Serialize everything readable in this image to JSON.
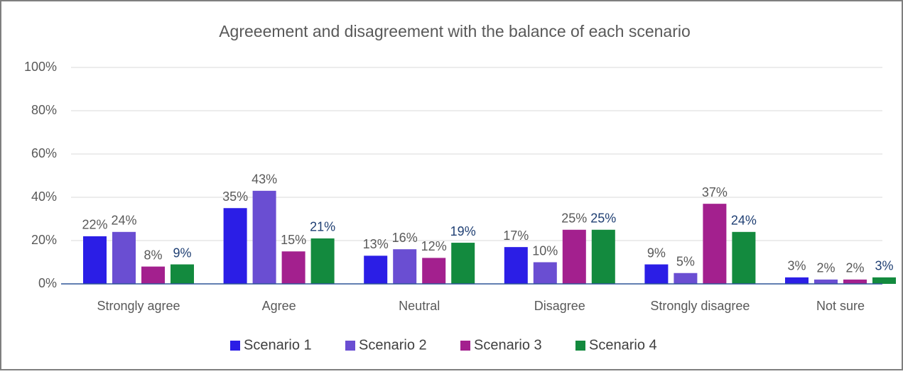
{
  "chart_data": {
    "type": "bar",
    "title": "Agreeement and disagreement with the balance of each scenario",
    "categories": [
      "Strongly agree",
      "Agree",
      "Neutral",
      "Disagree",
      "Strongly disagree",
      "Not sure"
    ],
    "series": [
      {
        "name": "Scenario 1",
        "color": "#2b1ee6",
        "label_color": "#595959",
        "values": [
          22,
          35,
          13,
          17,
          9,
          3
        ],
        "value_labels": [
          "22%",
          "35%",
          "13%",
          "17%",
          "9%",
          "3%"
        ]
      },
      {
        "name": "Scenario 2",
        "color": "#6a4ed2",
        "label_color": "#595959",
        "values": [
          24,
          43,
          16,
          10,
          5,
          2
        ],
        "value_labels": [
          "24%",
          "43%",
          "16%",
          "10%",
          "5%",
          "2%"
        ]
      },
      {
        "name": "Scenario 3",
        "color": "#a3208e",
        "label_color": "#595959",
        "values": [
          8,
          15,
          12,
          25,
          37,
          2
        ],
        "value_labels": [
          "8%",
          "15%",
          "12%",
          "25%",
          "37%",
          "2%"
        ]
      },
      {
        "name": "Scenario 4",
        "color": "#138a3e",
        "label_color": "#1f3f73",
        "values": [
          9,
          21,
          19,
          25,
          24,
          3
        ],
        "value_labels": [
          "9%",
          "21%",
          "19%",
          "25%",
          "24%",
          "3%"
        ]
      }
    ],
    "ylim": [
      0,
      100
    ],
    "yticks": [
      {
        "value": 0,
        "label": "0%"
      },
      {
        "value": 20,
        "label": "20%"
      },
      {
        "value": 40,
        "label": "40%"
      },
      {
        "value": 60,
        "label": "60%"
      },
      {
        "value": 80,
        "label": "80%"
      },
      {
        "value": 100,
        "label": "100%"
      }
    ],
    "grid": true,
    "legend": "bottom"
  }
}
